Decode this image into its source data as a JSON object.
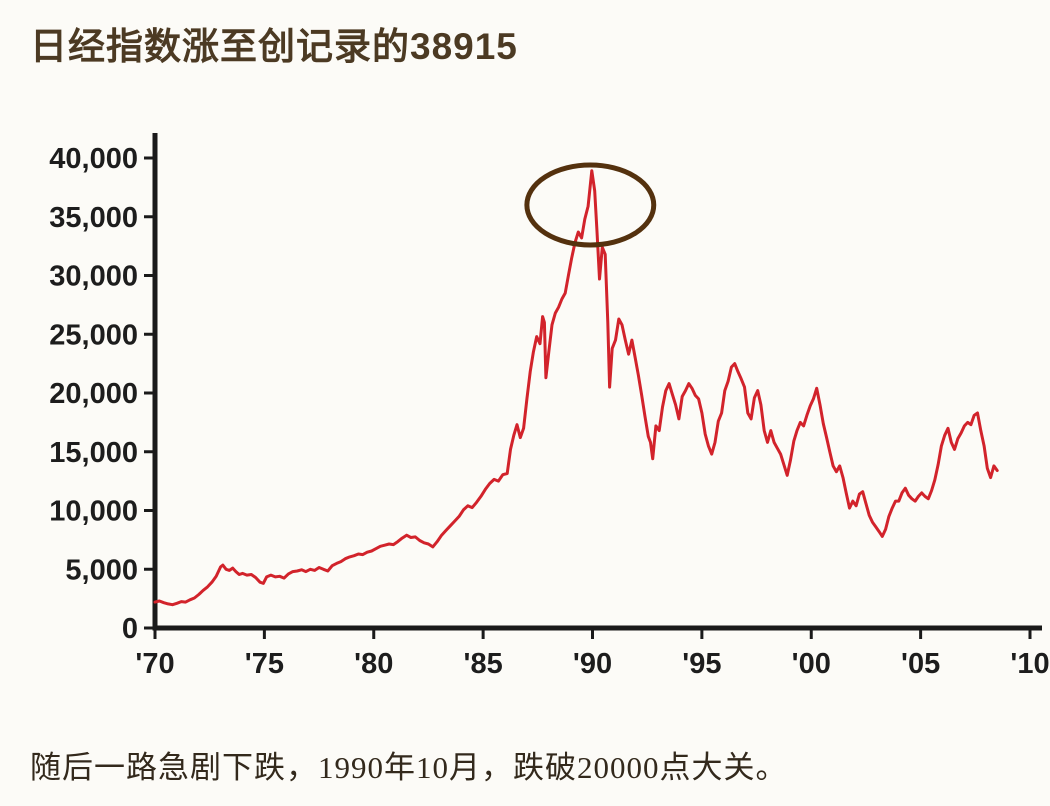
{
  "page": {
    "title": "日经指数涨至创记录的38915",
    "caption": "随后一路急剧下跌，1990年10月，跌破20000点大关。"
  },
  "colors": {
    "background": "#fcfbf7",
    "title": "#4c3a23",
    "caption": "#33291c",
    "axis": "#1a1a1a",
    "tick_label": "#1d1d1d",
    "line": "#d2232b",
    "annotation": "#54310e"
  },
  "chart_data": {
    "type": "line",
    "title": "",
    "xlabel": "",
    "ylabel": "",
    "grid": false,
    "legend": false,
    "xlim": [
      1970,
      2010
    ],
    "ylim": [
      0,
      40000
    ],
    "x_ticks": [
      {
        "value": 1970,
        "label": "'70"
      },
      {
        "value": 1975,
        "label": "'75"
      },
      {
        "value": 1980,
        "label": "'80"
      },
      {
        "value": 1985,
        "label": "'85"
      },
      {
        "value": 1990,
        "label": "'90"
      },
      {
        "value": 1995,
        "label": "'95"
      },
      {
        "value": 2000,
        "label": "'00"
      },
      {
        "value": 2005,
        "label": "'05"
      },
      {
        "value": 2010,
        "label": "'10"
      }
    ],
    "y_ticks": [
      {
        "value": 0,
        "label": "0"
      },
      {
        "value": 5000,
        "label": "5,000"
      },
      {
        "value": 10000,
        "label": "10,000"
      },
      {
        "value": 15000,
        "label": "15,000"
      },
      {
        "value": 20000,
        "label": "20,000"
      },
      {
        "value": 25000,
        "label": "25,000"
      },
      {
        "value": 30000,
        "label": "30,000"
      },
      {
        "value": 35000,
        "label": "35,000"
      },
      {
        "value": 40000,
        "label": "40,000"
      }
    ],
    "series": [
      {
        "name": "日经指数",
        "color": "#d2232b",
        "points": [
          [
            1970.0,
            2200
          ],
          [
            1970.2,
            2300
          ],
          [
            1970.4,
            2150
          ],
          [
            1970.6,
            2050
          ],
          [
            1970.8,
            1980
          ],
          [
            1971.0,
            2100
          ],
          [
            1971.2,
            2250
          ],
          [
            1971.4,
            2200
          ],
          [
            1971.6,
            2400
          ],
          [
            1971.8,
            2550
          ],
          [
            1972.0,
            2850
          ],
          [
            1972.2,
            3200
          ],
          [
            1972.4,
            3500
          ],
          [
            1972.6,
            3900
          ],
          [
            1972.8,
            4400
          ],
          [
            1973.0,
            5200
          ],
          [
            1973.1,
            5350
          ],
          [
            1973.25,
            5000
          ],
          [
            1973.4,
            4900
          ],
          [
            1973.55,
            5100
          ],
          [
            1973.7,
            4800
          ],
          [
            1973.85,
            4550
          ],
          [
            1974.0,
            4650
          ],
          [
            1974.2,
            4500
          ],
          [
            1974.4,
            4550
          ],
          [
            1974.6,
            4300
          ],
          [
            1974.8,
            3900
          ],
          [
            1974.95,
            3800
          ],
          [
            1975.1,
            4350
          ],
          [
            1975.3,
            4500
          ],
          [
            1975.5,
            4350
          ],
          [
            1975.7,
            4400
          ],
          [
            1975.9,
            4250
          ],
          [
            1976.1,
            4600
          ],
          [
            1976.3,
            4800
          ],
          [
            1976.5,
            4850
          ],
          [
            1976.7,
            4950
          ],
          [
            1976.9,
            4800
          ],
          [
            1977.1,
            5000
          ],
          [
            1977.3,
            4900
          ],
          [
            1977.5,
            5150
          ],
          [
            1977.7,
            5000
          ],
          [
            1977.9,
            4850
          ],
          [
            1978.1,
            5300
          ],
          [
            1978.3,
            5500
          ],
          [
            1978.5,
            5650
          ],
          [
            1978.7,
            5900
          ],
          [
            1978.9,
            6050
          ],
          [
            1979.1,
            6150
          ],
          [
            1979.3,
            6300
          ],
          [
            1979.5,
            6250
          ],
          [
            1979.7,
            6450
          ],
          [
            1979.9,
            6550
          ],
          [
            1980.1,
            6750
          ],
          [
            1980.3,
            6950
          ],
          [
            1980.5,
            7050
          ],
          [
            1980.7,
            7150
          ],
          [
            1980.9,
            7100
          ],
          [
            1981.1,
            7350
          ],
          [
            1981.3,
            7650
          ],
          [
            1981.5,
            7900
          ],
          [
            1981.7,
            7700
          ],
          [
            1981.9,
            7750
          ],
          [
            1982.1,
            7450
          ],
          [
            1982.3,
            7250
          ],
          [
            1982.5,
            7150
          ],
          [
            1982.7,
            6900
          ],
          [
            1982.9,
            7350
          ],
          [
            1983.1,
            7900
          ],
          [
            1983.3,
            8300
          ],
          [
            1983.5,
            8700
          ],
          [
            1983.7,
            9100
          ],
          [
            1983.9,
            9500
          ],
          [
            1984.1,
            10050
          ],
          [
            1984.3,
            10400
          ],
          [
            1984.5,
            10250
          ],
          [
            1984.7,
            10700
          ],
          [
            1984.9,
            11200
          ],
          [
            1985.1,
            11800
          ],
          [
            1985.3,
            12300
          ],
          [
            1985.5,
            12650
          ],
          [
            1985.7,
            12500
          ],
          [
            1985.9,
            13050
          ],
          [
            1986.1,
            13150
          ],
          [
            1986.25,
            15200
          ],
          [
            1986.4,
            16400
          ],
          [
            1986.55,
            17300
          ],
          [
            1986.7,
            16200
          ],
          [
            1986.85,
            17000
          ],
          [
            1987.0,
            19500
          ],
          [
            1987.15,
            21800
          ],
          [
            1987.3,
            23500
          ],
          [
            1987.45,
            24800
          ],
          [
            1987.6,
            24200
          ],
          [
            1987.72,
            26500
          ],
          [
            1987.8,
            26000
          ],
          [
            1987.87,
            21300
          ],
          [
            1988.0,
            23500
          ],
          [
            1988.15,
            25800
          ],
          [
            1988.3,
            26800
          ],
          [
            1988.45,
            27300
          ],
          [
            1988.6,
            28000
          ],
          [
            1988.75,
            28500
          ],
          [
            1988.9,
            30000
          ],
          [
            1989.05,
            31500
          ],
          [
            1989.2,
            32800
          ],
          [
            1989.35,
            33700
          ],
          [
            1989.5,
            33200
          ],
          [
            1989.65,
            34800
          ],
          [
            1989.8,
            35900
          ],
          [
            1989.97,
            38915
          ],
          [
            1990.1,
            37200
          ],
          [
            1990.2,
            33900
          ],
          [
            1990.32,
            29700
          ],
          [
            1990.45,
            32400
          ],
          [
            1990.58,
            31800
          ],
          [
            1990.7,
            26000
          ],
          [
            1990.78,
            20500
          ],
          [
            1990.9,
            23800
          ],
          [
            1991.05,
            24500
          ],
          [
            1991.2,
            26300
          ],
          [
            1991.35,
            25800
          ],
          [
            1991.5,
            24500
          ],
          [
            1991.65,
            23300
          ],
          [
            1991.8,
            24500
          ],
          [
            1991.95,
            23000
          ],
          [
            1992.1,
            21500
          ],
          [
            1992.25,
            19800
          ],
          [
            1992.4,
            18000
          ],
          [
            1992.55,
            16300
          ],
          [
            1992.65,
            15800
          ],
          [
            1992.75,
            14400
          ],
          [
            1992.9,
            17200
          ],
          [
            1993.05,
            16800
          ],
          [
            1993.2,
            18800
          ],
          [
            1993.35,
            20200
          ],
          [
            1993.5,
            20800
          ],
          [
            1993.65,
            19900
          ],
          [
            1993.8,
            19000
          ],
          [
            1993.95,
            17800
          ],
          [
            1994.1,
            19700
          ],
          [
            1994.25,
            20200
          ],
          [
            1994.4,
            20800
          ],
          [
            1994.55,
            20400
          ],
          [
            1994.7,
            19800
          ],
          [
            1994.85,
            19500
          ],
          [
            1995.0,
            18300
          ],
          [
            1995.15,
            16500
          ],
          [
            1995.3,
            15500
          ],
          [
            1995.45,
            14800
          ],
          [
            1995.6,
            15800
          ],
          [
            1995.75,
            17600
          ],
          [
            1995.9,
            18300
          ],
          [
            1996.05,
            20200
          ],
          [
            1996.2,
            21000
          ],
          [
            1996.35,
            22200
          ],
          [
            1996.5,
            22500
          ],
          [
            1996.65,
            21800
          ],
          [
            1996.8,
            21200
          ],
          [
            1996.95,
            20500
          ],
          [
            1997.1,
            18300
          ],
          [
            1997.25,
            17800
          ],
          [
            1997.4,
            19600
          ],
          [
            1997.55,
            20200
          ],
          [
            1997.7,
            19000
          ],
          [
            1997.85,
            16800
          ],
          [
            1998.0,
            15800
          ],
          [
            1998.15,
            16800
          ],
          [
            1998.3,
            15800
          ],
          [
            1998.45,
            15300
          ],
          [
            1998.6,
            14800
          ],
          [
            1998.75,
            13900
          ],
          [
            1998.9,
            13000
          ],
          [
            1999.05,
            14300
          ],
          [
            1999.2,
            15900
          ],
          [
            1999.35,
            16800
          ],
          [
            1999.5,
            17500
          ],
          [
            1999.65,
            17200
          ],
          [
            1999.8,
            18100
          ],
          [
            1999.95,
            18900
          ],
          [
            2000.1,
            19500
          ],
          [
            2000.25,
            20400
          ],
          [
            2000.4,
            19000
          ],
          [
            2000.55,
            17400
          ],
          [
            2000.7,
            16200
          ],
          [
            2000.85,
            15000
          ],
          [
            2001.0,
            13800
          ],
          [
            2001.15,
            13300
          ],
          [
            2001.3,
            13800
          ],
          [
            2001.45,
            12800
          ],
          [
            2001.6,
            11500
          ],
          [
            2001.75,
            10200
          ],
          [
            2001.9,
            10800
          ],
          [
            2002.05,
            10400
          ],
          [
            2002.2,
            11400
          ],
          [
            2002.35,
            11600
          ],
          [
            2002.5,
            10600
          ],
          [
            2002.65,
            9600
          ],
          [
            2002.8,
            9000
          ],
          [
            2002.95,
            8600
          ],
          [
            2003.1,
            8200
          ],
          [
            2003.25,
            7800
          ],
          [
            2003.4,
            8400
          ],
          [
            2003.55,
            9500
          ],
          [
            2003.7,
            10200
          ],
          [
            2003.85,
            10800
          ],
          [
            2004.0,
            10800
          ],
          [
            2004.15,
            11500
          ],
          [
            2004.3,
            11900
          ],
          [
            2004.45,
            11300
          ],
          [
            2004.6,
            11000
          ],
          [
            2004.75,
            10800
          ],
          [
            2004.9,
            11200
          ],
          [
            2005.05,
            11500
          ],
          [
            2005.2,
            11200
          ],
          [
            2005.35,
            11000
          ],
          [
            2005.5,
            11700
          ],
          [
            2005.65,
            12600
          ],
          [
            2005.8,
            13900
          ],
          [
            2005.95,
            15500
          ],
          [
            2006.1,
            16400
          ],
          [
            2006.25,
            17000
          ],
          [
            2006.4,
            15800
          ],
          [
            2006.55,
            15200
          ],
          [
            2006.7,
            16100
          ],
          [
            2006.85,
            16600
          ],
          [
            2007.0,
            17200
          ],
          [
            2007.15,
            17500
          ],
          [
            2007.3,
            17300
          ],
          [
            2007.45,
            18100
          ],
          [
            2007.6,
            18300
          ],
          [
            2007.75,
            16800
          ],
          [
            2007.9,
            15500
          ],
          [
            2008.05,
            13600
          ],
          [
            2008.2,
            12800
          ],
          [
            2008.35,
            13800
          ],
          [
            2008.5,
            13400
          ]
        ]
      }
    ],
    "annotations": [
      {
        "type": "ellipse",
        "x": 1989.9,
        "y": 36000,
        "rx": 2.9,
        "ry": 3400,
        "color": "#54310e",
        "stroke_width": 5
      }
    ]
  }
}
